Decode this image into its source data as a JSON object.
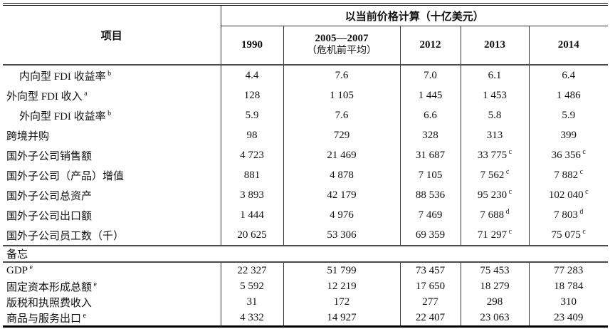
{
  "table": {
    "item_header": "项目",
    "group_header": "以当前价格计算（十亿美元）",
    "columns": [
      {
        "label": "1990",
        "sub": ""
      },
      {
        "label": "2005—2007",
        "sub": "（危机前平均）"
      },
      {
        "label": "2012",
        "sub": ""
      },
      {
        "label": "2013",
        "sub": ""
      },
      {
        "label": "2014",
        "sub": ""
      }
    ],
    "rows": [
      {
        "label": "内向型 FDI 收益率^b",
        "indent": true,
        "values": [
          "4.4",
          "7.6",
          "7.0",
          "6.1",
          "6.4"
        ]
      },
      {
        "label": "外向型 FDI 收入^a",
        "indent": false,
        "values": [
          "128",
          "1 105",
          "1 445",
          "1 453",
          "1 486"
        ]
      },
      {
        "label": "外向型 FDI 收益率^b",
        "indent": true,
        "values": [
          "5.9",
          "7.6",
          "6.6",
          "5.8",
          "5.9"
        ]
      },
      {
        "label": "跨境并购",
        "indent": false,
        "values": [
          "98",
          "729",
          "328",
          "313",
          "399"
        ]
      },
      {
        "label": "国外子公司销售额",
        "indent": false,
        "values": [
          "4 723",
          "21 469",
          "31 687",
          "33 775^c",
          "36 356^c"
        ]
      },
      {
        "label": "国外子公司（产品）增值",
        "indent": false,
        "values": [
          "881",
          "4 878",
          "7 105",
          "7 562^c",
          "7 882^c"
        ]
      },
      {
        "label": "国外子公司总资产",
        "indent": false,
        "values": [
          "3 893",
          "42 179",
          "88 536",
          "95 230^c",
          "102 040^c"
        ]
      },
      {
        "label": "国外子公司出口额",
        "indent": false,
        "values": [
          "1 444",
          "4 976",
          "7 469",
          "7 688^d",
          "7 803^d"
        ]
      },
      {
        "label": "国外子公司员工数（千）",
        "indent": false,
        "values": [
          "20 625",
          "53 306",
          "69 359",
          "71 297^c",
          "75 075^c"
        ]
      }
    ],
    "memo_label": "备忘",
    "memo_rows": [
      {
        "label": "GDP^e",
        "indent": false,
        "values": [
          "22 327",
          "51 799",
          "73 457",
          "75 453",
          "77 283"
        ]
      },
      {
        "label": "固定资本形成总额^e",
        "indent": false,
        "values": [
          "5 592",
          "12 219",
          "17 650",
          "18 279",
          "18 784"
        ]
      },
      {
        "label": "版税和执照费收入",
        "indent": false,
        "values": [
          "31",
          "172",
          "277",
          "298",
          "310"
        ]
      },
      {
        "label": "商品与服务出口^e",
        "indent": false,
        "values": [
          "4 332",
          "14 927",
          "22 407",
          "23 063",
          "23 409"
        ]
      }
    ]
  }
}
